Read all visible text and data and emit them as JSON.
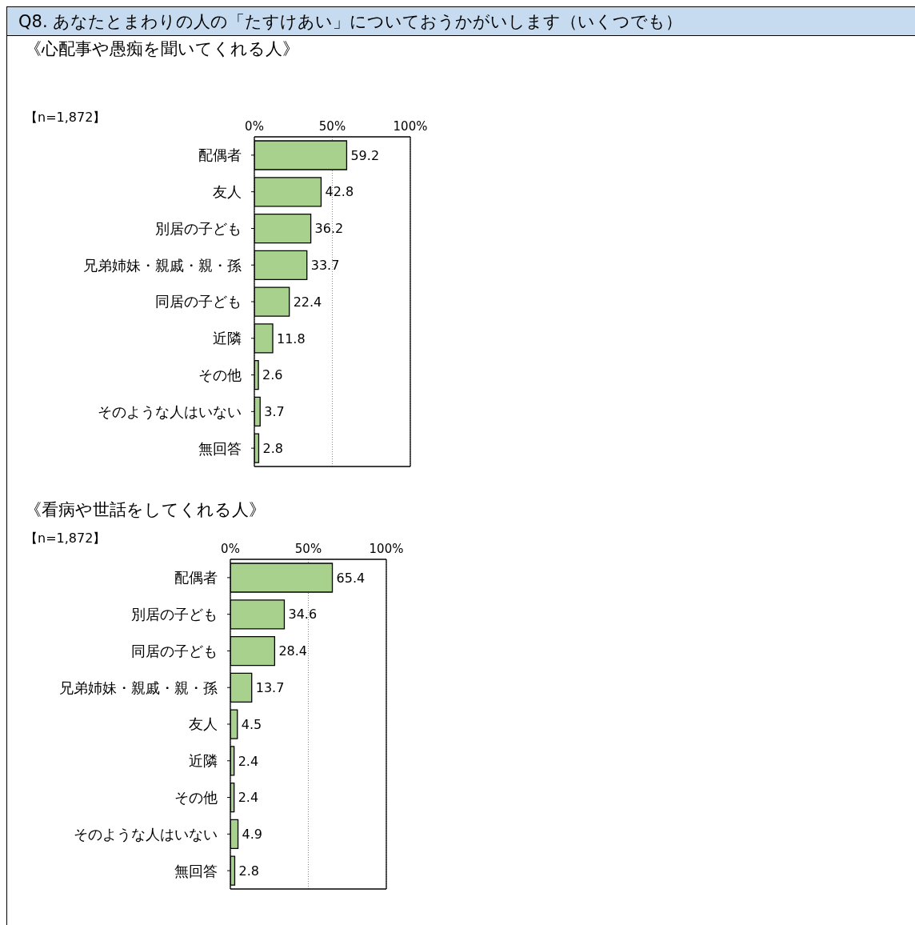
{
  "chart_data": [
    {
      "type": "bar",
      "orientation": "horizontal",
      "title": "Q8. あなたとまわりの人の「たすけあい」についておうかがいします（いくつでも）",
      "subtitle": "《心配事や愚痴を聞いてくれる人》",
      "annotations": [
        "【n=1,872】"
      ],
      "categories": [
        "配偶者",
        "友人",
        "別居の子ども",
        "兄弟姉妹・親戚・親・孫",
        "同居の子ども",
        "近隣",
        "その他",
        "そのような人はいない",
        "無回答"
      ],
      "values": [
        59.2,
        42.8,
        36.2,
        33.7,
        22.4,
        11.8,
        2.6,
        3.7,
        2.8
      ],
      "color": "#a9d18e",
      "xlim": [
        0,
        100
      ],
      "xticks": [
        {
          "value": 0,
          "label": "0%"
        },
        {
          "value": 50,
          "label": "50%"
        },
        {
          "value": 100,
          "label": "100%"
        }
      ],
      "grid": "x",
      "data_labels": true
    },
    {
      "type": "bar",
      "orientation": "horizontal",
      "subtitle": "《看病や世話をしてくれる人》",
      "annotations": [
        "【n=1,872】"
      ],
      "categories": [
        "配偶者",
        "別居の子ども",
        "同居の子ども",
        "兄弟姉妹・親戚・親・孫",
        "友人",
        "近隣",
        "その他",
        "そのような人はいない",
        "無回答"
      ],
      "values": [
        65.4,
        34.6,
        28.4,
        13.7,
        4.5,
        2.4,
        2.4,
        4.9,
        2.8
      ],
      "color": "#a9d18e",
      "xlim": [
        0,
        100
      ],
      "xticks": [
        {
          "value": 0,
          "label": "0%"
        },
        {
          "value": 50,
          "label": "50%"
        },
        {
          "value": 100,
          "label": "100%"
        }
      ],
      "grid": "x",
      "data_labels": true
    }
  ]
}
